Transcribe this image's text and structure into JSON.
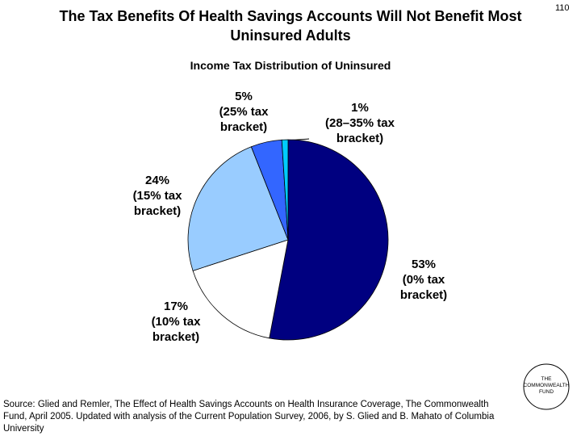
{
  "page_number": "110",
  "source": "Source: Glied and Remler, The Effect of Health Savings Accounts on Health Insurance Coverage, The Commonwealth Fund, April 2005. Updated  with analysis of the Current Population Survey, 2006, by S. Glied and B. Mahato of Columbia University",
  "logo": "THE COMMONWEALTH FUND",
  "chart_data": {
    "type": "pie",
    "title": "The Tax Benefits Of Health Savings Accounts Will Not Benefit Most Uninsured Adults",
    "subtitle": "Income Tax Distribution of Uninsured",
    "categories": [
      "(0% tax bracket)",
      "(10% tax bracket)",
      "(15% tax bracket)",
      "(25% tax bracket)",
      "(28–35% tax bracket)"
    ],
    "values": [
      53,
      17,
      24,
      5,
      1
    ],
    "value_labels": [
      "53%",
      "17%",
      "24%",
      "5%",
      "1%"
    ],
    "colors": [
      "#000080",
      "#ffffff",
      "#99ccff",
      "#3366ff",
      "#00ccff"
    ]
  }
}
